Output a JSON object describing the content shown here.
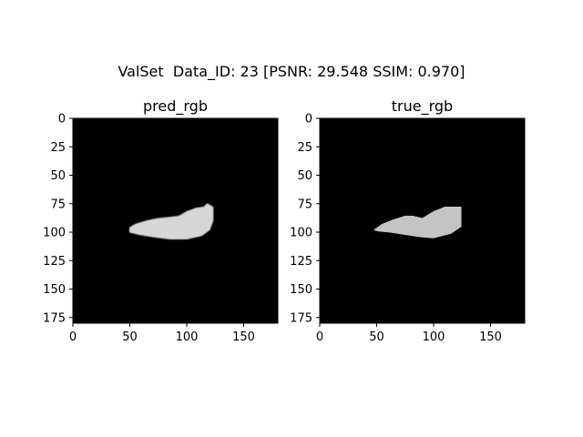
{
  "figure": {
    "suptitle": "ValSet  Data_ID: 23 [PSNR: 29.548 SSIM: 0.970]"
  },
  "chart_data": [
    {
      "type": "heatmap",
      "title": "pred_rgb",
      "xlim": [
        0,
        180
      ],
      "ylim": [
        180,
        0
      ],
      "xticks": [
        0,
        50,
        100,
        150
      ],
      "yticks": [
        0,
        25,
        50,
        75,
        100,
        125,
        150,
        175
      ],
      "background": "#000000",
      "object_color": "#d6d6d6",
      "object_outline": [
        [
          50,
          96
        ],
        [
          55,
          93
        ],
        [
          65,
          90
        ],
        [
          75,
          88
        ],
        [
          85,
          87
        ],
        [
          93,
          86
        ],
        [
          100,
          82
        ],
        [
          108,
          79
        ],
        [
          115,
          78
        ],
        [
          118,
          75
        ],
        [
          123,
          78
        ],
        [
          123,
          90
        ],
        [
          120,
          98
        ],
        [
          113,
          103
        ],
        [
          100,
          106
        ],
        [
          85,
          106
        ],
        [
          70,
          104
        ],
        [
          58,
          102
        ],
        [
          50,
          100
        ]
      ]
    },
    {
      "type": "heatmap",
      "title": "true_rgb",
      "xlim": [
        0,
        180
      ],
      "ylim": [
        180,
        0
      ],
      "xticks": [
        0,
        50,
        100,
        150
      ],
      "yticks": [
        0,
        25,
        50,
        75,
        100,
        125,
        150,
        175
      ],
      "background": "#000000",
      "object_color": "#c4c4c4",
      "object_outline": [
        [
          48,
          98
        ],
        [
          55,
          93
        ],
        [
          65,
          89
        ],
        [
          75,
          86
        ],
        [
          82,
          86
        ],
        [
          90,
          88
        ],
        [
          100,
          82
        ],
        [
          110,
          78
        ],
        [
          124,
          78
        ],
        [
          124,
          95
        ],
        [
          115,
          101
        ],
        [
          100,
          105
        ],
        [
          88,
          104
        ],
        [
          75,
          102
        ],
        [
          62,
          100
        ],
        [
          52,
          99
        ]
      ]
    }
  ]
}
